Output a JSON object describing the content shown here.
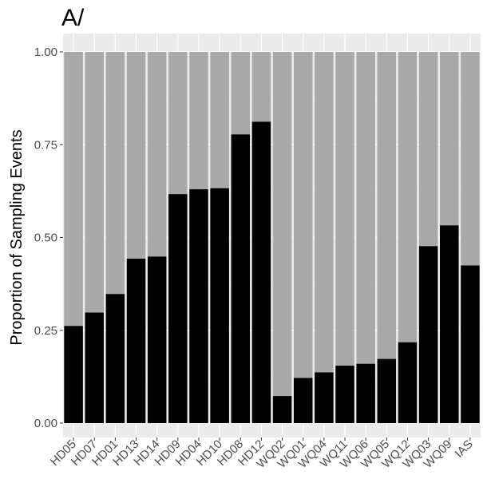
{
  "chart_data": {
    "type": "bar",
    "stacked": true,
    "title": "A/",
    "xlabel": "",
    "ylabel": "Proportion of Sampling Events",
    "ylim": [
      0,
      1
    ],
    "yticks": [
      "0.00",
      "0.25",
      "0.50",
      "0.75",
      "1.00"
    ],
    "grid": true,
    "legend": "none",
    "categories": [
      "HD05",
      "HD07",
      "HD01",
      "HD13",
      "HD14",
      "HD09",
      "HD04",
      "HD10",
      "HD08",
      "HD12",
      "WQ02",
      "WQ01",
      "WQ04",
      "WQ11",
      "WQ06",
      "WQ05",
      "WQ12",
      "WQ03",
      "WQ09",
      "IAS"
    ],
    "series": [
      {
        "color": "#000000",
        "values": [
          0.262,
          0.298,
          0.348,
          0.443,
          0.449,
          0.617,
          0.63,
          0.633,
          0.778,
          0.812,
          0.073,
          0.122,
          0.137,
          0.155,
          0.16,
          0.173,
          0.218,
          0.477,
          0.533,
          0.425
        ]
      },
      {
        "color": "#a9a9a9",
        "values": [
          0.738,
          0.702,
          0.652,
          0.557,
          0.551,
          0.383,
          0.37,
          0.367,
          0.222,
          0.188,
          0.927,
          0.878,
          0.863,
          0.845,
          0.84,
          0.827,
          0.782,
          0.523,
          0.467,
          0.575
        ]
      }
    ],
    "colors": {
      "panel": "#ebebeb",
      "gridline": "#ffffff",
      "text": "#4d4d4d"
    }
  }
}
